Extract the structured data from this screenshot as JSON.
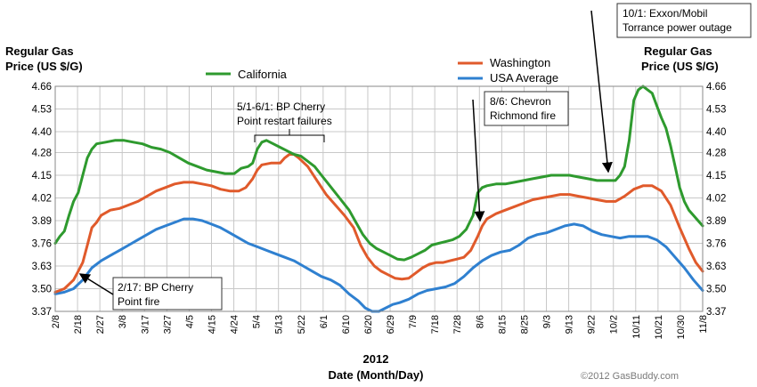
{
  "chart_data": {
    "type": "line",
    "left_axis_title": [
      "Regular Gas",
      "Price (US $/G)"
    ],
    "right_axis_title": [
      "Regular Gas",
      "Price (US $/G)"
    ],
    "xlabel": [
      "2012",
      "Date (Month/Day)"
    ],
    "credit": "©2012 GasBuddy.com",
    "ylim": [
      3.37,
      4.66
    ],
    "y_ticks": [
      "4.66",
      "4.53",
      "4.40",
      "4.28",
      "4.15",
      "4.02",
      "3.89",
      "3.76",
      "3.63",
      "3.50",
      "3.37"
    ],
    "x_ticks": [
      "2/8",
      "2/18",
      "2/27",
      "3/8",
      "3/17",
      "3/27",
      "4/5",
      "4/15",
      "4/24",
      "5/4",
      "5/13",
      "5/22",
      "6/1",
      "6/10",
      "6/20",
      "6/29",
      "7/9",
      "7/18",
      "7/28",
      "8/6",
      "8/15",
      "8/25",
      "9/3",
      "9/13",
      "9/22",
      "10/2",
      "10/11",
      "10/21",
      "10/30",
      "11/8"
    ],
    "legend": {
      "california": "California",
      "washington": "Washington",
      "usa": "USA Average"
    },
    "colors": {
      "california": "#2e9a2e",
      "washington": "#e05a2b",
      "usa": "#2f80d0",
      "grid": "#c8c8c8"
    },
    "series": [
      {
        "key": "california",
        "name": "California",
        "points": [
          [
            0,
            3.76
          ],
          [
            2,
            3.8
          ],
          [
            4,
            3.83
          ],
          [
            6,
            3.92
          ],
          [
            8,
            4.0
          ],
          [
            10,
            4.05
          ],
          [
            12,
            4.15
          ],
          [
            14,
            4.25
          ],
          [
            16,
            4.3
          ],
          [
            18,
            4.33
          ],
          [
            22,
            4.34
          ],
          [
            26,
            4.35
          ],
          [
            30,
            4.35
          ],
          [
            34,
            4.34
          ],
          [
            38,
            4.33
          ],
          [
            42,
            4.31
          ],
          [
            46,
            4.3
          ],
          [
            50,
            4.28
          ],
          [
            54,
            4.25
          ],
          [
            58,
            4.22
          ],
          [
            62,
            4.2
          ],
          [
            66,
            4.18
          ],
          [
            70,
            4.17
          ],
          [
            74,
            4.16
          ],
          [
            78,
            4.16
          ],
          [
            81,
            4.19
          ],
          [
            84,
            4.2
          ],
          [
            86,
            4.22
          ],
          [
            88,
            4.3
          ],
          [
            90,
            4.34
          ],
          [
            92,
            4.35
          ],
          [
            95,
            4.33
          ],
          [
            98,
            4.31
          ],
          [
            101,
            4.29
          ],
          [
            104,
            4.27
          ],
          [
            107,
            4.26
          ],
          [
            110,
            4.23
          ],
          [
            113,
            4.2
          ],
          [
            116,
            4.15
          ],
          [
            119,
            4.1
          ],
          [
            122,
            4.05
          ],
          [
            125,
            4.0
          ],
          [
            128,
            3.95
          ],
          [
            131,
            3.88
          ],
          [
            134,
            3.81
          ],
          [
            137,
            3.76
          ],
          [
            140,
            3.73
          ],
          [
            143,
            3.71
          ],
          [
            146,
            3.69
          ],
          [
            149,
            3.67
          ],
          [
            152,
            3.665
          ],
          [
            155,
            3.68
          ],
          [
            158,
            3.7
          ],
          [
            161,
            3.72
          ],
          [
            164,
            3.75
          ],
          [
            167,
            3.76
          ],
          [
            170,
            3.77
          ],
          [
            173,
            3.78
          ],
          [
            176,
            3.8
          ],
          [
            179,
            3.84
          ],
          [
            182,
            3.92
          ],
          [
            184,
            4.05
          ],
          [
            186,
            4.08
          ],
          [
            188,
            4.09
          ],
          [
            192,
            4.1
          ],
          [
            196,
            4.1
          ],
          [
            200,
            4.11
          ],
          [
            204,
            4.12
          ],
          [
            208,
            4.13
          ],
          [
            212,
            4.14
          ],
          [
            216,
            4.15
          ],
          [
            220,
            4.15
          ],
          [
            224,
            4.15
          ],
          [
            228,
            4.14
          ],
          [
            232,
            4.13
          ],
          [
            236,
            4.12
          ],
          [
            240,
            4.12
          ],
          [
            244,
            4.12
          ],
          [
            246,
            4.15
          ],
          [
            248,
            4.2
          ],
          [
            250,
            4.35
          ],
          [
            252,
            4.58
          ],
          [
            254,
            4.64
          ],
          [
            256,
            4.66
          ],
          [
            258,
            4.64
          ],
          [
            260,
            4.62
          ],
          [
            262,
            4.55
          ],
          [
            264,
            4.48
          ],
          [
            266,
            4.42
          ],
          [
            268,
            4.32
          ],
          [
            270,
            4.2
          ],
          [
            272,
            4.08
          ],
          [
            274,
            4.0
          ],
          [
            276,
            3.95
          ],
          [
            278,
            3.92
          ],
          [
            280,
            3.89
          ],
          [
            282,
            3.86
          ]
        ]
      },
      {
        "key": "washington",
        "name": "Washington",
        "points": [
          [
            0,
            3.48
          ],
          [
            4,
            3.5
          ],
          [
            8,
            3.55
          ],
          [
            10,
            3.6
          ],
          [
            12,
            3.65
          ],
          [
            14,
            3.75
          ],
          [
            16,
            3.85
          ],
          [
            18,
            3.88
          ],
          [
            20,
            3.92
          ],
          [
            24,
            3.95
          ],
          [
            28,
            3.96
          ],
          [
            32,
            3.98
          ],
          [
            36,
            4.0
          ],
          [
            40,
            4.03
          ],
          [
            44,
            4.06
          ],
          [
            48,
            4.08
          ],
          [
            52,
            4.1
          ],
          [
            56,
            4.11
          ],
          [
            60,
            4.11
          ],
          [
            64,
            4.1
          ],
          [
            68,
            4.09
          ],
          [
            72,
            4.07
          ],
          [
            76,
            4.06
          ],
          [
            80,
            4.06
          ],
          [
            83,
            4.08
          ],
          [
            86,
            4.13
          ],
          [
            88,
            4.18
          ],
          [
            90,
            4.21
          ],
          [
            94,
            4.22
          ],
          [
            98,
            4.22
          ],
          [
            100,
            4.25
          ],
          [
            102,
            4.27
          ],
          [
            104,
            4.27
          ],
          [
            106,
            4.25
          ],
          [
            110,
            4.2
          ],
          [
            114,
            4.12
          ],
          [
            118,
            4.04
          ],
          [
            122,
            3.98
          ],
          [
            126,
            3.92
          ],
          [
            130,
            3.85
          ],
          [
            133,
            3.75
          ],
          [
            136,
            3.68
          ],
          [
            139,
            3.63
          ],
          [
            142,
            3.6
          ],
          [
            145,
            3.58
          ],
          [
            148,
            3.56
          ],
          [
            151,
            3.555
          ],
          [
            154,
            3.56
          ],
          [
            157,
            3.59
          ],
          [
            160,
            3.62
          ],
          [
            163,
            3.64
          ],
          [
            166,
            3.65
          ],
          [
            169,
            3.65
          ],
          [
            172,
            3.66
          ],
          [
            175,
            3.67
          ],
          [
            178,
            3.68
          ],
          [
            181,
            3.72
          ],
          [
            184,
            3.8
          ],
          [
            186,
            3.86
          ],
          [
            188,
            3.9
          ],
          [
            192,
            3.93
          ],
          [
            196,
            3.95
          ],
          [
            200,
            3.97
          ],
          [
            204,
            3.99
          ],
          [
            208,
            4.01
          ],
          [
            212,
            4.02
          ],
          [
            216,
            4.03
          ],
          [
            220,
            4.04
          ],
          [
            224,
            4.04
          ],
          [
            228,
            4.03
          ],
          [
            232,
            4.02
          ],
          [
            236,
            4.01
          ],
          [
            240,
            4.0
          ],
          [
            244,
            4.0
          ],
          [
            248,
            4.03
          ],
          [
            252,
            4.07
          ],
          [
            256,
            4.09
          ],
          [
            260,
            4.09
          ],
          [
            264,
            4.06
          ],
          [
            268,
            3.98
          ],
          [
            272,
            3.85
          ],
          [
            276,
            3.73
          ],
          [
            279,
            3.65
          ],
          [
            282,
            3.6
          ]
        ]
      },
      {
        "key": "usa",
        "name": "USA Average",
        "points": [
          [
            0,
            3.47
          ],
          [
            4,
            3.48
          ],
          [
            8,
            3.5
          ],
          [
            12,
            3.55
          ],
          [
            16,
            3.62
          ],
          [
            20,
            3.66
          ],
          [
            24,
            3.69
          ],
          [
            28,
            3.72
          ],
          [
            32,
            3.75
          ],
          [
            36,
            3.78
          ],
          [
            40,
            3.81
          ],
          [
            44,
            3.84
          ],
          [
            48,
            3.86
          ],
          [
            52,
            3.88
          ],
          [
            56,
            3.9
          ],
          [
            60,
            3.9
          ],
          [
            64,
            3.89
          ],
          [
            68,
            3.87
          ],
          [
            72,
            3.85
          ],
          [
            76,
            3.82
          ],
          [
            80,
            3.79
          ],
          [
            84,
            3.76
          ],
          [
            88,
            3.74
          ],
          [
            92,
            3.72
          ],
          [
            96,
            3.7
          ],
          [
            100,
            3.68
          ],
          [
            104,
            3.66
          ],
          [
            108,
            3.63
          ],
          [
            112,
            3.6
          ],
          [
            116,
            3.57
          ],
          [
            120,
            3.55
          ],
          [
            124,
            3.52
          ],
          [
            128,
            3.47
          ],
          [
            132,
            3.43
          ],
          [
            135,
            3.39
          ],
          [
            138,
            3.37
          ],
          [
            141,
            3.37
          ],
          [
            144,
            3.39
          ],
          [
            147,
            3.41
          ],
          [
            150,
            3.42
          ],
          [
            154,
            3.44
          ],
          [
            158,
            3.47
          ],
          [
            162,
            3.49
          ],
          [
            166,
            3.5
          ],
          [
            170,
            3.51
          ],
          [
            174,
            3.53
          ],
          [
            178,
            3.57
          ],
          [
            182,
            3.62
          ],
          [
            186,
            3.66
          ],
          [
            190,
            3.69
          ],
          [
            194,
            3.71
          ],
          [
            198,
            3.72
          ],
          [
            202,
            3.75
          ],
          [
            206,
            3.79
          ],
          [
            210,
            3.81
          ],
          [
            214,
            3.82
          ],
          [
            218,
            3.84
          ],
          [
            222,
            3.86
          ],
          [
            226,
            3.87
          ],
          [
            230,
            3.86
          ],
          [
            234,
            3.83
          ],
          [
            238,
            3.81
          ],
          [
            242,
            3.8
          ],
          [
            246,
            3.79
          ],
          [
            250,
            3.8
          ],
          [
            254,
            3.8
          ],
          [
            258,
            3.8
          ],
          [
            262,
            3.78
          ],
          [
            266,
            3.74
          ],
          [
            270,
            3.68
          ],
          [
            274,
            3.62
          ],
          [
            278,
            3.55
          ],
          [
            282,
            3.49
          ]
        ]
      }
    ],
    "annotations": [
      {
        "key": "feb17",
        "lines": [
          "2/17: BP Cherry",
          "Point fire"
        ]
      },
      {
        "key": "may1",
        "lines": [
          "5/1-6/1: BP Cherry",
          "Point restart failures"
        ]
      },
      {
        "key": "aug6",
        "lines": [
          "8/6: Chevron",
          "Richmond fire"
        ]
      },
      {
        "key": "oct1",
        "lines": [
          "10/1: Exxon/Mobil",
          "Torrance power outage"
        ]
      }
    ]
  }
}
